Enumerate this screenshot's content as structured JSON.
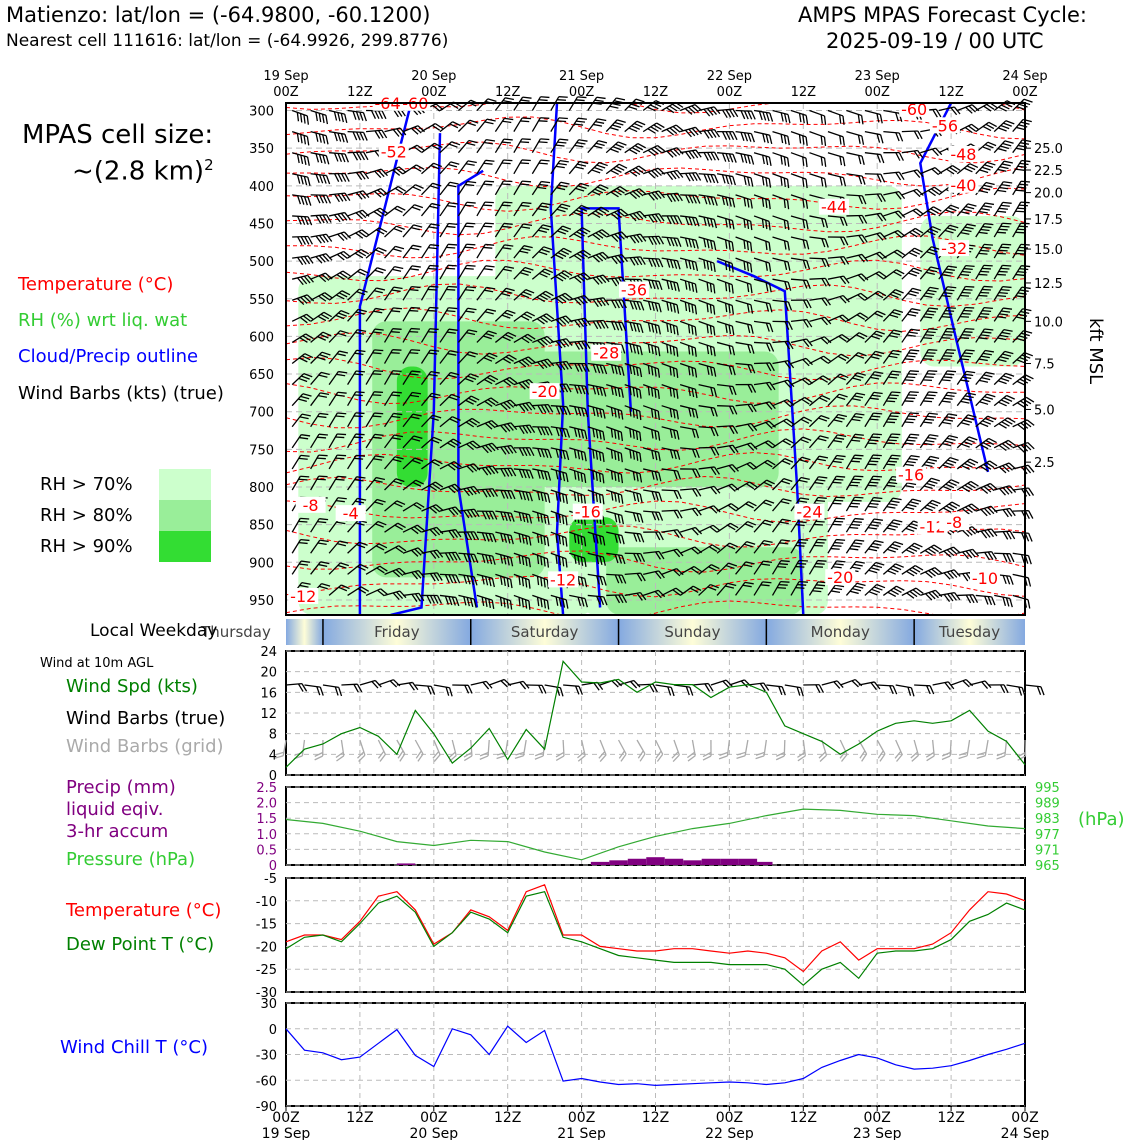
{
  "header": {
    "location": "Matienzo: lat/lon = (-64.9800, -60.1200)",
    "nearest": "Nearest cell 111616: lat/lon = (-64.9926, 299.8776)",
    "cycle_title": "AMPS MPAS Forecast Cycle:",
    "cycle_time": "2025-09-19 / 00 UTC"
  },
  "legend": {
    "cell_size_line1": "MPAS cell size:",
    "cell_size_line2": "~(2.8 km)",
    "cell_size_sup": "2",
    "temperature": "Temperature (°C)",
    "rh": "RH (%) wrt liq. wat",
    "cloud": "Cloud/Precip outline",
    "barbs": "Wind Barbs (kts) (true)",
    "rh70": "RH > 70%",
    "rh80": "RH > 80%",
    "rh90": "RH > 90%",
    "local_weekday": "Local Weekday",
    "wind10m": "Wind at 10m AGL",
    "wind_spd": "Wind Spd (kts)",
    "wind_barbs_true": "Wind Barbs (true)",
    "wind_barbs_grid": "Wind Barbs (grid)",
    "precip1": "Precip (mm)",
    "precip2": "liquid eqiv.",
    "precip3": "3-hr accum",
    "pressure": "Pressure (hPa)",
    "hpa_unit": "(hPa)",
    "temp2": "Temperature (°C)",
    "dewpt": "Dew Point T (°C)",
    "windchill": "Wind Chill T (°C)",
    "kft": "kft MSL"
  },
  "colors": {
    "temp": "#ff0000",
    "rh_text": "#33cc33",
    "cloud": "#0000ff",
    "green": "#008000",
    "precip": "#800080",
    "grey": "#aaaaaa",
    "rh70": "#ccffcc",
    "rh80": "#99ee99",
    "rh90": "#33dd33"
  },
  "time_axis": {
    "top_dates": [
      "19 Sep",
      "",
      "20 Sep",
      "",
      "21 Sep",
      "",
      "22 Sep",
      "",
      "23 Sep",
      "",
      "24 Sep"
    ],
    "hours": [
      "00Z",
      "12Z",
      "00Z",
      "12Z",
      "00Z",
      "12Z",
      "00Z",
      "12Z",
      "00Z",
      "12Z",
      "00Z"
    ],
    "bottom_dates": [
      "19 Sep",
      "",
      "20 Sep",
      "",
      "21 Sep",
      "",
      "22 Sep",
      "",
      "23 Sep",
      "",
      "24 Sep"
    ]
  },
  "weekdays": [
    "Thursday",
    "Friday",
    "Saturday",
    "Sunday",
    "Monday",
    "Tuesday"
  ],
  "chart_data": [
    {
      "type": "heatmap",
      "name": "time-height cross section",
      "y_pressure_ticks": [
        300,
        350,
        400,
        450,
        500,
        550,
        600,
        650,
        700,
        750,
        800,
        850,
        900,
        950
      ],
      "ylim": [
        970,
        290
      ],
      "kft_ticks": [
        "25.0",
        "22.5",
        "20.0",
        "17.5",
        "15.0",
        "12.5",
        "10.0",
        "7.5",
        "5.0",
        "2.5"
      ],
      "kft_tick_pressures": [
        350,
        379,
        409,
        444,
        484,
        529,
        580,
        636,
        697,
        767
      ],
      "xlim_hours": [
        0,
        120
      ],
      "temperature_labels": [
        {
          "t": 16.5,
          "p": 295,
          "v": "-64"
        },
        {
          "t": 21,
          "p": 295,
          "v": "-60"
        },
        {
          "t": 102,
          "p": 303,
          "v": "-60"
        },
        {
          "t": 107,
          "p": 325,
          "v": "-56"
        },
        {
          "t": 17.5,
          "p": 360,
          "v": "-52"
        },
        {
          "t": 110,
          "p": 363,
          "v": "-48"
        },
        {
          "t": 110,
          "p": 404,
          "v": "-40"
        },
        {
          "t": 89,
          "p": 433,
          "v": "-44"
        },
        {
          "t": 108.5,
          "p": 488,
          "v": "-32"
        },
        {
          "t": 56.5,
          "p": 543,
          "v": "-36"
        },
        {
          "t": 52,
          "p": 627,
          "v": "-28"
        },
        {
          "t": 42,
          "p": 678,
          "v": "-20"
        },
        {
          "t": 101.5,
          "p": 789,
          "v": "-16"
        },
        {
          "t": 49,
          "p": 838,
          "v": "-16"
        },
        {
          "t": 85,
          "p": 838,
          "v": "-24"
        },
        {
          "t": 4,
          "p": 829,
          "v": "-8"
        },
        {
          "t": 10.5,
          "p": 840,
          "v": "-4"
        },
        {
          "t": 105,
          "p": 858,
          "v": "-12"
        },
        {
          "t": 108.5,
          "p": 852,
          "v": "-8"
        },
        {
          "t": 90,
          "p": 925,
          "v": "-20"
        },
        {
          "t": 45,
          "p": 928,
          "v": "-12"
        },
        {
          "t": 113.5,
          "p": 926,
          "v": "-10"
        },
        {
          "t": 2.8,
          "p": 950,
          "v": "-12"
        }
      ]
    },
    {
      "type": "line",
      "name": "Wind Spd (kts)",
      "ylim": [
        0,
        24
      ],
      "yticks": [
        0,
        4,
        8,
        12,
        16,
        20,
        24
      ],
      "x": [
        0,
        3,
        6,
        9,
        12,
        15,
        18,
        21,
        24,
        27,
        30,
        33,
        36,
        39,
        42,
        45,
        48,
        51,
        54,
        57,
        60,
        63,
        66,
        69,
        72,
        75,
        78,
        81,
        84,
        87,
        90,
        93,
        96,
        99,
        102,
        105,
        108,
        111,
        114,
        117,
        120
      ],
      "values": [
        1.5,
        5,
        6,
        8,
        9.2,
        7.5,
        4,
        12.5,
        8,
        2.3,
        5.2,
        9,
        3,
        8.8,
        5,
        22,
        18,
        17.8,
        18.5,
        16,
        18,
        17.5,
        17.5,
        15,
        17,
        17.5,
        16,
        9.5,
        8,
        6.5,
        4,
        6,
        8.5,
        10,
        10.5,
        10,
        10.5,
        12.5,
        8.5,
        6.5,
        2
      ]
    },
    {
      "type": "bar",
      "name": "Precip (mm) 3-hr accum",
      "ylim": [
        0,
        2.5
      ],
      "yticks": [
        0,
        0.5,
        1.0,
        1.5,
        2.0,
        2.5
      ],
      "bars": [
        {
          "x": 19.5,
          "v": 0.05
        },
        {
          "x": 51,
          "v": 0.1
        },
        {
          "x": 54,
          "v": 0.15
        },
        {
          "x": 57,
          "v": 0.2
        },
        {
          "x": 60,
          "v": 0.25
        },
        {
          "x": 63,
          "v": 0.2
        },
        {
          "x": 66,
          "v": 0.15
        },
        {
          "x": 69,
          "v": 0.2
        },
        {
          "x": 72,
          "v": 0.2
        },
        {
          "x": 75,
          "v": 0.2
        },
        {
          "x": 77.5,
          "v": 0.1
        }
      ]
    },
    {
      "type": "line",
      "name": "Pressure (hPa)",
      "ylim": [
        965,
        995
      ],
      "yticks": [
        965,
        971,
        977,
        983,
        989,
        995
      ],
      "x": [
        0,
        6,
        12,
        18,
        24,
        30,
        36,
        42,
        48,
        54,
        60,
        66,
        72,
        78,
        84,
        90,
        96,
        102,
        108,
        114,
        120
      ],
      "values": [
        982.5,
        981,
        978,
        974,
        972.5,
        974.5,
        974,
        970,
        967,
        972,
        976,
        979,
        981,
        984,
        986.5,
        986,
        984.5,
        984,
        982,
        980,
        979
      ]
    },
    {
      "type": "line",
      "name": "Temperature / Dew Point (°C)",
      "ylim": [
        -30,
        -5
      ],
      "yticks": [
        -5,
        -10,
        -15,
        -20,
        -25,
        -30
      ],
      "x": [
        0,
        3,
        6,
        9,
        12,
        15,
        18,
        21,
        24,
        27,
        30,
        33,
        36,
        39,
        42,
        45,
        48,
        51,
        54,
        57,
        60,
        63,
        66,
        69,
        72,
        75,
        78,
        81,
        84,
        87,
        90,
        93,
        96,
        99,
        102,
        105,
        108,
        111,
        114,
        117,
        120
      ],
      "series": [
        {
          "name": "Temperature (°C)",
          "values": [
            -19,
            -17.5,
            -17.5,
            -18.5,
            -14.5,
            -9,
            -8,
            -12,
            -19.5,
            -17,
            -12,
            -13.5,
            -16.5,
            -8,
            -6.5,
            -17.5,
            -17.5,
            -20,
            -20.5,
            -21,
            -21,
            -20.5,
            -20.5,
            -21,
            -21.5,
            -21,
            -21.5,
            -22.5,
            -25.5,
            -21,
            -19,
            -23,
            -20.5,
            -20.5,
            -20.5,
            -19.5,
            -17,
            -12,
            -8,
            -8.5,
            -10
          ]
        },
        {
          "name": "Dew Point T (°C)",
          "values": [
            -20.5,
            -18,
            -17.5,
            -19,
            -15,
            -10.5,
            -9,
            -12.5,
            -20,
            -17,
            -12.5,
            -14,
            -17,
            -9,
            -8,
            -18,
            -19,
            -20.5,
            -22,
            -22.5,
            -23,
            -23.5,
            -23.5,
            -23.5,
            -24,
            -24,
            -24,
            -25,
            -28.5,
            -25,
            -23.5,
            -27,
            -21.5,
            -21,
            -21,
            -20.5,
            -18.5,
            -14.5,
            -13,
            -10.5,
            -12
          ]
        }
      ]
    },
    {
      "type": "line",
      "name": "Wind Chill T (°C)",
      "ylim": [
        -90,
        30
      ],
      "yticks": [
        30,
        0,
        -30,
        -60,
        -90
      ],
      "x": [
        0,
        3,
        6,
        9,
        12,
        15,
        18,
        21,
        24,
        27,
        30,
        33,
        36,
        39,
        42,
        45,
        48,
        51,
        54,
        57,
        60,
        63,
        66,
        69,
        72,
        75,
        78,
        81,
        84,
        87,
        90,
        93,
        96,
        99,
        102,
        105,
        108,
        111,
        114,
        117,
        120
      ],
      "values": [
        0,
        -25,
        -28,
        -36,
        -33,
        -17,
        -1,
        -31,
        -44,
        0,
        -7,
        -30,
        3,
        -16,
        -2,
        -61,
        -58,
        -62,
        -65,
        -64,
        -66,
        -65,
        -64,
        -63,
        -62,
        -63,
        -65,
        -63,
        -58,
        -45,
        -37,
        -30,
        -34,
        -42,
        -47,
        -46,
        -43,
        -37,
        -30,
        -24,
        -17
      ]
    }
  ]
}
